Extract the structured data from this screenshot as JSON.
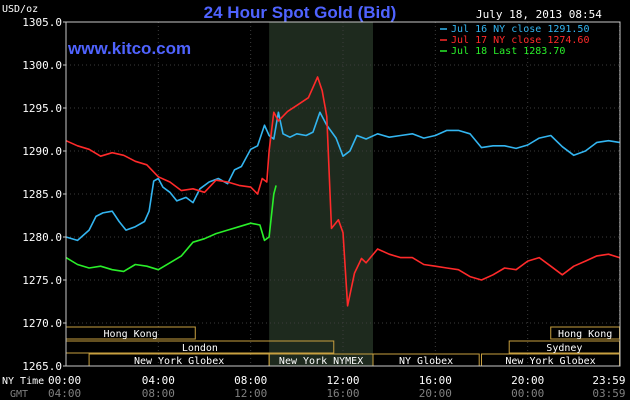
{
  "chart_data": {
    "type": "line",
    "title": "24 Hour Spot Gold (Bid)",
    "y_unit_label": "USD/oz",
    "website": "www.kitco.com",
    "timestamp": "July 18, 2013 08:54",
    "ylim": [
      1265,
      1305
    ],
    "y_ticks": [
      "1305.0",
      "1300.0",
      "1295.0",
      "1290.0",
      "1285.0",
      "1280.0",
      "1275.0",
      "1270.0",
      "1265.0"
    ],
    "y_tick_values": [
      1305,
      1300,
      1295,
      1290,
      1285,
      1280,
      1275,
      1270,
      1265
    ],
    "x_axis_ny_label": "NY Time",
    "x_axis_gmt_label": "GMT",
    "x_ticks_ny": [
      "00:00",
      "04:00",
      "08:00",
      "12:00",
      "16:00",
      "20:00",
      "23:59"
    ],
    "x_ticks_gmt": [
      "04:00",
      "08:00",
      "12:00",
      "16:00",
      "20:00",
      "00:00",
      "03:59"
    ],
    "x_tick_hours": [
      0,
      4,
      8,
      12,
      16,
      20,
      23.98
    ],
    "highlight_hours": [
      8.8,
      13.3
    ],
    "grid": true,
    "legend_position": "top-right",
    "series": [
      {
        "name": "Jul 16 NY close 1291.50",
        "color": "#33b5f0",
        "points": [
          [
            0,
            1280.0
          ],
          [
            0.5,
            1279.6
          ],
          [
            1.0,
            1280.8
          ],
          [
            1.3,
            1282.4
          ],
          [
            1.6,
            1282.8
          ],
          [
            2.0,
            1283.0
          ],
          [
            2.3,
            1281.8
          ],
          [
            2.6,
            1280.8
          ],
          [
            3.0,
            1281.2
          ],
          [
            3.4,
            1281.8
          ],
          [
            3.6,
            1283.0
          ],
          [
            3.8,
            1286.5
          ],
          [
            4.0,
            1286.8
          ],
          [
            4.2,
            1285.8
          ],
          [
            4.5,
            1285.2
          ],
          [
            4.8,
            1284.2
          ],
          [
            5.2,
            1284.6
          ],
          [
            5.5,
            1284.0
          ],
          [
            5.8,
            1285.6
          ],
          [
            6.2,
            1286.4
          ],
          [
            6.6,
            1286.8
          ],
          [
            7.0,
            1286.2
          ],
          [
            7.3,
            1287.8
          ],
          [
            7.6,
            1288.2
          ],
          [
            8.0,
            1290.2
          ],
          [
            8.3,
            1290.6
          ],
          [
            8.6,
            1293.0
          ],
          [
            8.8,
            1291.8
          ],
          [
            9.0,
            1291.4
          ],
          [
            9.2,
            1294.5
          ],
          [
            9.4,
            1292.0
          ],
          [
            9.7,
            1291.6
          ],
          [
            10.0,
            1292.0
          ],
          [
            10.4,
            1291.8
          ],
          [
            10.7,
            1292.2
          ],
          [
            11.0,
            1294.5
          ],
          [
            11.3,
            1293.0
          ],
          [
            11.7,
            1291.5
          ],
          [
            12.0,
            1289.4
          ],
          [
            12.3,
            1290.0
          ],
          [
            12.6,
            1291.8
          ],
          [
            13.0,
            1291.4
          ],
          [
            13.5,
            1292.0
          ],
          [
            14.0,
            1291.6
          ],
          [
            14.5,
            1291.8
          ],
          [
            15.0,
            1292.0
          ],
          [
            15.5,
            1291.5
          ],
          [
            16.0,
            1291.8
          ],
          [
            16.5,
            1292.4
          ],
          [
            17.0,
            1292.4
          ],
          [
            17.5,
            1292.0
          ],
          [
            18.0,
            1290.4
          ],
          [
            18.5,
            1290.6
          ],
          [
            19.0,
            1290.6
          ],
          [
            19.5,
            1290.3
          ],
          [
            20.0,
            1290.7
          ],
          [
            20.5,
            1291.5
          ],
          [
            21.0,
            1291.8
          ],
          [
            21.5,
            1290.5
          ],
          [
            22.0,
            1289.5
          ],
          [
            22.5,
            1290.0
          ],
          [
            23.0,
            1291.0
          ],
          [
            23.5,
            1291.2
          ],
          [
            23.98,
            1291.0
          ]
        ]
      },
      {
        "name": "Jul 17 NY close 1274.60",
        "color": "#ff2a2a",
        "points": [
          [
            0,
            1291.2
          ],
          [
            0.5,
            1290.6
          ],
          [
            1.0,
            1290.2
          ],
          [
            1.5,
            1289.4
          ],
          [
            2.0,
            1289.8
          ],
          [
            2.5,
            1289.5
          ],
          [
            3.0,
            1288.8
          ],
          [
            3.5,
            1288.4
          ],
          [
            4.0,
            1287.0
          ],
          [
            4.5,
            1286.4
          ],
          [
            5.0,
            1285.4
          ],
          [
            5.5,
            1285.6
          ],
          [
            6.0,
            1285.2
          ],
          [
            6.5,
            1286.6
          ],
          [
            7.0,
            1286.4
          ],
          [
            7.5,
            1286.0
          ],
          [
            8.0,
            1285.8
          ],
          [
            8.3,
            1285.0
          ],
          [
            8.5,
            1286.8
          ],
          [
            8.7,
            1286.4
          ],
          [
            8.8,
            1290.0
          ],
          [
            9.0,
            1294.5
          ],
          [
            9.2,
            1293.5
          ],
          [
            9.6,
            1294.6
          ],
          [
            10.0,
            1295.3
          ],
          [
            10.5,
            1296.2
          ],
          [
            10.9,
            1298.6
          ],
          [
            11.1,
            1297.0
          ],
          [
            11.3,
            1294.0
          ],
          [
            11.5,
            1281.0
          ],
          [
            11.8,
            1282.0
          ],
          [
            12.0,
            1280.5
          ],
          [
            12.2,
            1272.0
          ],
          [
            12.5,
            1275.8
          ],
          [
            12.8,
            1277.5
          ],
          [
            13.0,
            1277.0
          ],
          [
            13.5,
            1278.6
          ],
          [
            14.0,
            1278.0
          ],
          [
            14.5,
            1277.6
          ],
          [
            15.0,
            1277.6
          ],
          [
            15.5,
            1276.8
          ],
          [
            16.0,
            1276.6
          ],
          [
            16.5,
            1276.4
          ],
          [
            17.0,
            1276.2
          ],
          [
            17.5,
            1275.4
          ],
          [
            18.0,
            1275.0
          ],
          [
            18.5,
            1275.6
          ],
          [
            19.0,
            1276.4
          ],
          [
            19.5,
            1276.2
          ],
          [
            20.0,
            1277.2
          ],
          [
            20.5,
            1277.6
          ],
          [
            21.0,
            1276.6
          ],
          [
            21.5,
            1275.6
          ],
          [
            22.0,
            1276.6
          ],
          [
            22.5,
            1277.2
          ],
          [
            23.0,
            1277.8
          ],
          [
            23.5,
            1278.0
          ],
          [
            23.98,
            1277.6
          ]
        ]
      },
      {
        "name": "Jul 18 Last 1283.70",
        "color": "#2aef2a",
        "points": [
          [
            0,
            1277.6
          ],
          [
            0.5,
            1276.8
          ],
          [
            1.0,
            1276.4
          ],
          [
            1.5,
            1276.6
          ],
          [
            2.0,
            1276.2
          ],
          [
            2.5,
            1276.0
          ],
          [
            3.0,
            1276.8
          ],
          [
            3.5,
            1276.6
          ],
          [
            4.0,
            1276.2
          ],
          [
            4.5,
            1277.0
          ],
          [
            5.0,
            1277.8
          ],
          [
            5.5,
            1279.4
          ],
          [
            6.0,
            1279.8
          ],
          [
            6.5,
            1280.4
          ],
          [
            7.0,
            1280.8
          ],
          [
            7.5,
            1281.2
          ],
          [
            8.0,
            1281.6
          ],
          [
            8.4,
            1281.4
          ],
          [
            8.6,
            1279.6
          ],
          [
            8.8,
            1280.0
          ],
          [
            9.0,
            1285.0
          ],
          [
            9.1,
            1286.0
          ]
        ]
      }
    ],
    "session_rows": [
      [
        {
          "label": "Hong Kong",
          "start": 0,
          "end": 5.6
        },
        {
          "label": "Hong Kong",
          "start": 21.0,
          "end": 23.98
        }
      ],
      [
        {
          "label": "London",
          "start": 0,
          "end": 11.6
        },
        {
          "label": "Sydney",
          "start": 19.2,
          "end": 23.98
        }
      ],
      [
        {
          "label": "New York Globex",
          "start": 1.0,
          "end": 8.8
        },
        {
          "label": "New York NYMEX",
          "start": 8.8,
          "end": 13.3
        },
        {
          "label": "NY Globex",
          "start": 13.3,
          "end": 17.9
        },
        {
          "label": "New York Globex",
          "start": 18.0,
          "end": 23.98
        }
      ]
    ]
  }
}
